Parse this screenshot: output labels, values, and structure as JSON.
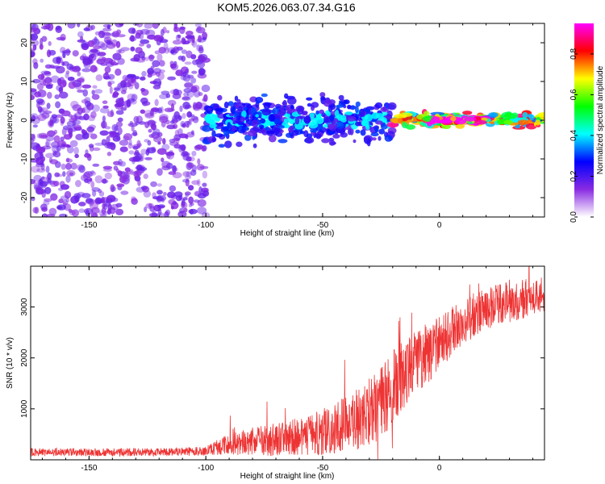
{
  "title": "KOM5.2026.063.07.34.G16",
  "chart_data": [
    {
      "type": "heatmap",
      "title": "KOM5.2026.063.07.34.G16",
      "xlabel": "Height of straight line (km)",
      "ylabel": "Frequency (Hz)",
      "xlim": [
        -175,
        45
      ],
      "ylim": [
        -25,
        25
      ],
      "xticks": [
        -150,
        -100,
        -50,
        0
      ],
      "yticks": [
        -20,
        -10,
        0,
        10,
        20
      ],
      "colorbar": {
        "label": "Normalized spectral amplitude",
        "range": [
          0.0,
          0.95
        ],
        "ticks": [
          0.0,
          0.2,
          0.4,
          0.6,
          0.8
        ],
        "tick_labels": [
          "0.0",
          "0.2",
          "0.4",
          "0.6",
          "0.8"
        ],
        "colormap": [
          "#ffffff",
          "#8a2be2",
          "#0000ff",
          "#00ffff",
          "#00ff00",
          "#ffff00",
          "#ff0000",
          "#ff00ff"
        ]
      },
      "regions": [
        {
          "x_range": [
            -175,
            -100
          ],
          "y_range": [
            -25,
            25
          ],
          "amplitude": 0.05,
          "description_level": "scattered noise"
        },
        {
          "x_range": [
            -100,
            -20
          ],
          "y_range": [
            -8,
            8
          ],
          "amplitude": 0.15
        },
        {
          "x_range": [
            -20,
            45
          ],
          "y_range": [
            -2,
            2
          ],
          "amplitude": 0.6
        },
        {
          "x_range": [
            -5,
            20
          ],
          "y_range": [
            -1,
            1
          ],
          "amplitude": 0.9
        }
      ]
    },
    {
      "type": "line",
      "xlabel": "Height of straight line (km)",
      "ylabel": "SNR (10 * v/v)",
      "xlim": [
        -175,
        45
      ],
      "ylim": [
        0,
        3800
      ],
      "xticks": [
        -150,
        -100,
        -50,
        0
      ],
      "yticks": [
        1000,
        2000,
        3000
      ],
      "color": "#ee3333",
      "series": [
        {
          "name": "SNR",
          "x": [
            -175,
            -150,
            -125,
            -100,
            -95,
            -90,
            -85,
            -80,
            -75,
            -70,
            -65,
            -60,
            -55,
            -50,
            -45,
            -40,
            -35,
            -30,
            -25,
            -20,
            -15,
            -10,
            -5,
            0,
            5,
            10,
            15,
            20,
            25,
            30,
            35,
            40,
            45
          ],
          "values": [
            150,
            150,
            150,
            170,
            250,
            300,
            330,
            360,
            380,
            400,
            430,
            450,
            500,
            550,
            600,
            700,
            800,
            950,
            1100,
            1400,
            1700,
            1900,
            2100,
            2300,
            2500,
            2700,
            2850,
            2950,
            3050,
            3100,
            3150,
            3200,
            3250
          ],
          "spread": [
            80,
            80,
            80,
            90,
            150,
            200,
            250,
            280,
            300,
            330,
            350,
            380,
            420,
            450,
            500,
            550,
            600,
            650,
            700,
            750,
            700,
            650,
            600,
            550,
            500,
            450,
            450,
            400,
            400,
            400,
            400,
            350,
            350
          ]
        }
      ]
    }
  ]
}
